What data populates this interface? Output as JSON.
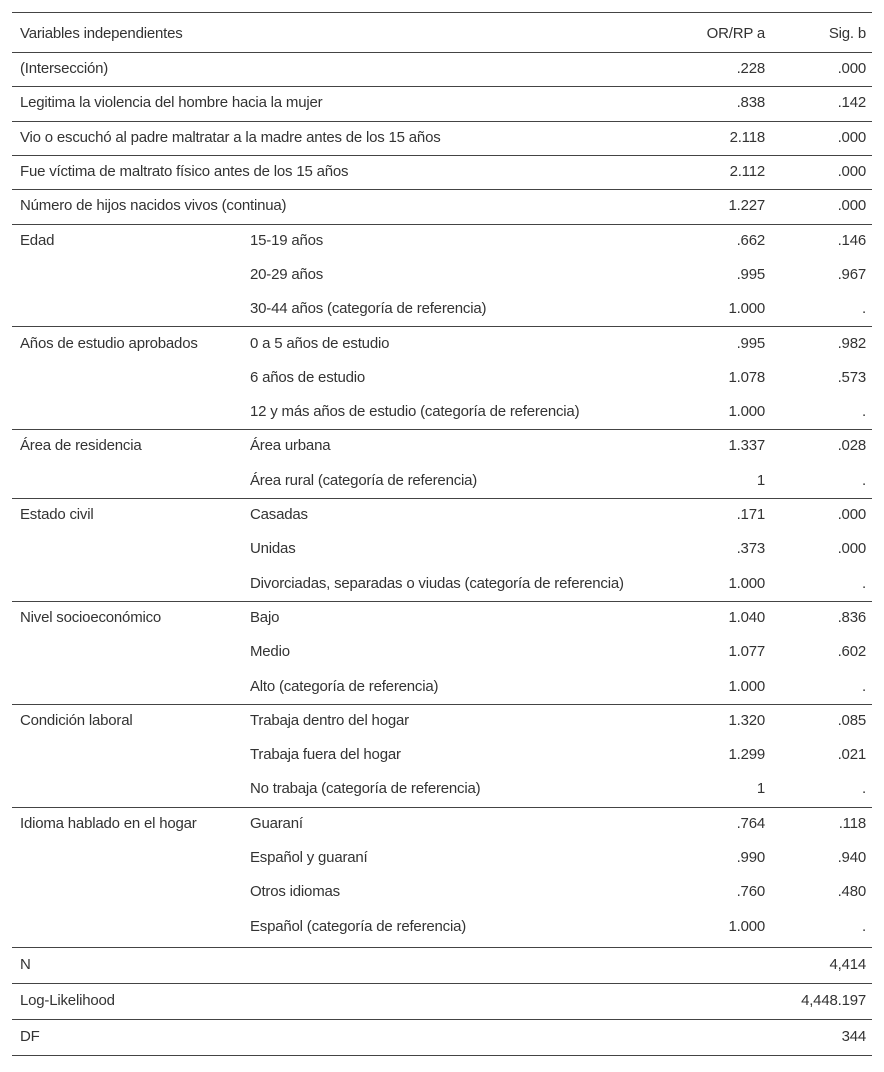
{
  "header": [
    "Variables independientes",
    "OR/RP a",
    "Sig. b"
  ],
  "rows": [
    {
      "label": "(Intersección)",
      "or": ".228",
      "sig": ".000"
    },
    {
      "label": "Legitima la violencia del hombre hacia la mujer",
      "or": ".838",
      "sig": ".142"
    },
    {
      "label": "Vio o escuchó al padre maltratar a la madre antes de los 15 años",
      "or": "2.118",
      "sig": ".000"
    },
    {
      "label": "Fue víctima de maltrato físico antes de los 15 años",
      "or": "2.112",
      "sig": ".000"
    },
    {
      "label": "Número de hijos nacidos vivos (continua)",
      "or": "1.227",
      "sig": ".000"
    }
  ],
  "groups": [
    {
      "label": "Edad",
      "items": [
        {
          "label": "15-19 años",
          "or": ".662",
          "sig": ".146"
        },
        {
          "label": "20-29 años",
          "or": ".995",
          "sig": ".967"
        },
        {
          "label": "30-44 años (categoría de referencia)",
          "or": "1.000",
          "sig": "."
        }
      ]
    },
    {
      "label": "Años de estudio aprobados",
      "items": [
        {
          "label": "0 a 5 años de estudio",
          "or": ".995",
          "sig": ".982"
        },
        {
          "label": "6 años de estudio",
          "or": "1.078",
          "sig": ".573"
        },
        {
          "label": "12 y más años de estudio (categoría de referencia)",
          "or": "1.000",
          "sig": "."
        }
      ]
    },
    {
      "label": "Área de residencia",
      "items": [
        {
          "label": "Área urbana",
          "or": "1.337",
          "sig": ".028"
        },
        {
          "label": "Área rural (categoría de referencia)",
          "or": "1",
          "sig": "."
        }
      ]
    },
    {
      "label": "Estado civil",
      "items": [
        {
          "label": "Casadas",
          "or": ".171",
          "sig": ".000"
        },
        {
          "label": "Unidas",
          "or": ".373",
          "sig": ".000"
        },
        {
          "label": "Divorciadas, separadas o viudas (categoría de referencia)",
          "or": "1.000",
          "sig": "."
        }
      ]
    },
    {
      "label": "Nivel socioeconómico",
      "items": [
        {
          "label": "Bajo",
          "or": "1.040",
          "sig": ".836"
        },
        {
          "label": "Medio",
          "or": "1.077",
          "sig": ".602"
        },
        {
          "label": "Alto (categoría de referencia)",
          "or": "1.000",
          "sig": "."
        }
      ]
    },
    {
      "label": "Condición laboral",
      "items": [
        {
          "label": "Trabaja dentro del hogar",
          "or": "1.320",
          "sig": ".085"
        },
        {
          "label": "Trabaja fuera del hogar",
          "or": "1.299",
          "sig": ".021"
        },
        {
          "label": "No trabaja (categoría de referencia)",
          "or": "1",
          "sig": "."
        }
      ]
    },
    {
      "label": "Idioma hablado en el hogar",
      "items": [
        {
          "label": "Guaraní",
          "or": ".764",
          "sig": ".118"
        },
        {
          "label": "Español y guaraní",
          "or": ".990",
          "sig": ".940"
        },
        {
          "label": "Otros idiomas",
          "or": ".760",
          "sig": ".480"
        },
        {
          "label": "Español (categoría de referencia)",
          "or": "1.000",
          "sig": "."
        }
      ]
    }
  ],
  "footer": [
    {
      "label": "N",
      "value": "4,414"
    },
    {
      "label": "Log-Likelihood",
      "value": "4,448.197"
    },
    {
      "label": "DF",
      "value": "344"
    }
  ]
}
